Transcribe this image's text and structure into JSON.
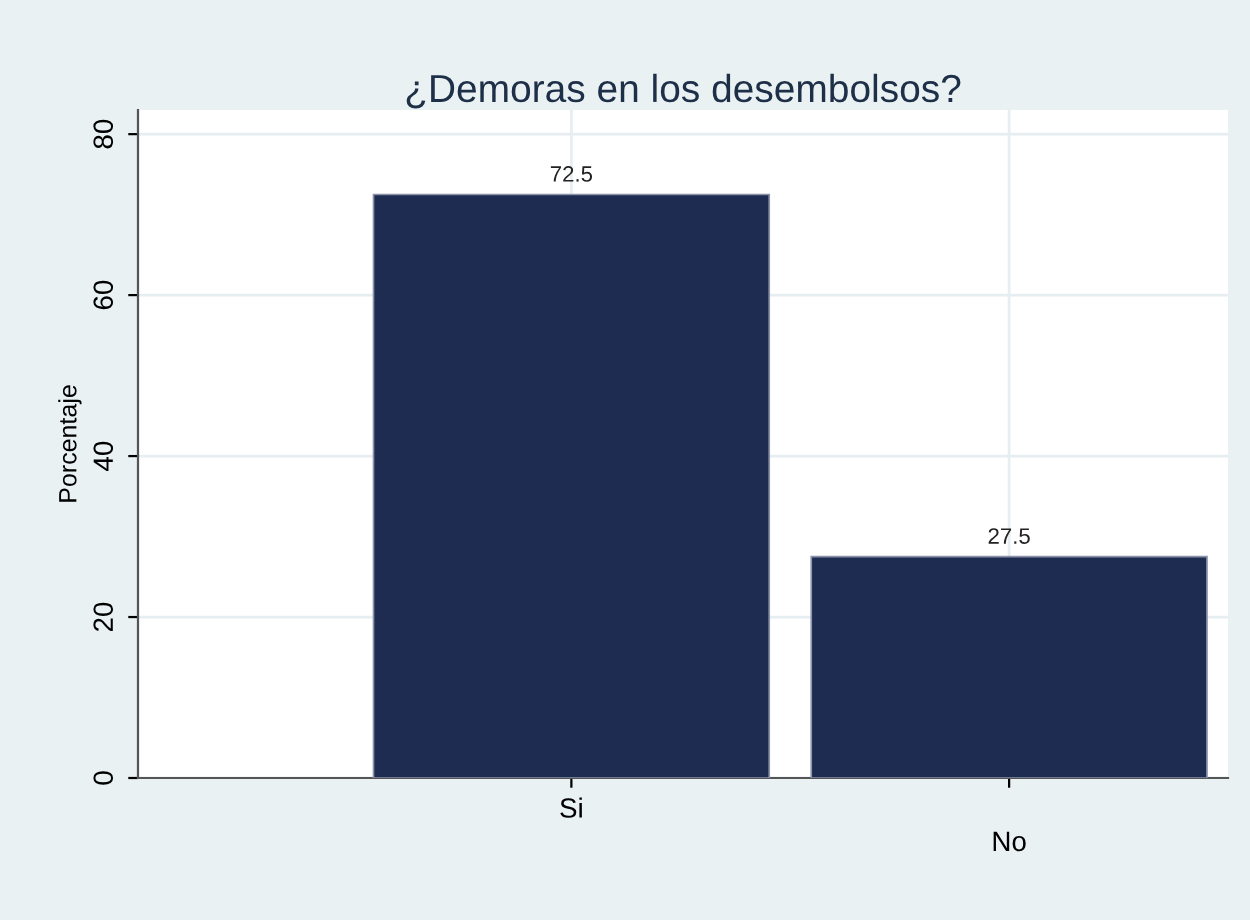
{
  "chart_data": {
    "type": "bar",
    "title": "¿Demoras en los desembolsos?",
    "ylabel": "Porcentaje",
    "categories": [
      "Si",
      "No"
    ],
    "values": [
      72.5,
      27.5
    ],
    "color": "#1f2c52",
    "data_labels": true,
    "ylim": [
      0,
      83
    ],
    "yticks": [
      0,
      20,
      40,
      60,
      80
    ],
    "grid": true
  }
}
